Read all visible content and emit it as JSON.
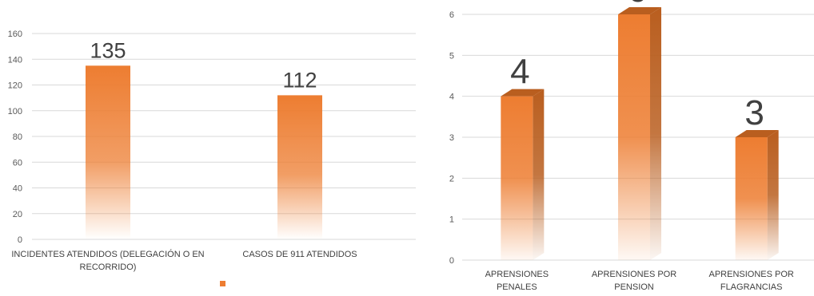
{
  "colors": {
    "bar": "#ED7D31",
    "bar_dark": "#B95E1F",
    "bar_top": "#F29A5B",
    "grid": "#D9D9D9",
    "tick_text": "#595959",
    "label_text": "#404040",
    "value_text": "#404040"
  },
  "chart_data": [
    {
      "type": "bar",
      "title": "",
      "xlabel": "",
      "ylabel": "",
      "categories": [
        "INCIDENTES ATENDIDOS (DELEGACIÓN O EN RECORRIDO)",
        "CASOS DE 911 ATENDIDOS"
      ],
      "category_lines": [
        [
          "INCIDENTES ATENDIDOS (DELEGACIÓN O EN",
          "RECORRIDO)"
        ],
        [
          "CASOS DE 911 ATENDIDOS"
        ]
      ],
      "values": [
        135,
        112
      ],
      "ylim": [
        0,
        160
      ],
      "yticks": [
        0,
        20,
        40,
        60,
        80,
        100,
        120,
        140,
        160
      ],
      "grid": true,
      "legend": "bottom-center"
    },
    {
      "type": "bar",
      "title": "",
      "xlabel": "",
      "ylabel": "",
      "categories": [
        "APRENSIONES PENALES",
        "APRENSIONES POR PENSION",
        "APRENSIONES POR FLAGRANCIAS"
      ],
      "category_lines": [
        [
          "APRENSIONES",
          "PENALES"
        ],
        [
          "APRENSIONES POR",
          "PENSION"
        ],
        [
          "APRENSIONES POR",
          "FLAGRANCIAS"
        ]
      ],
      "values": [
        4,
        6,
        3
      ],
      "ylim": [
        0,
        6
      ],
      "yticks": [
        0,
        1,
        2,
        3,
        4,
        5,
        6
      ],
      "grid": true,
      "style": "3d"
    }
  ]
}
